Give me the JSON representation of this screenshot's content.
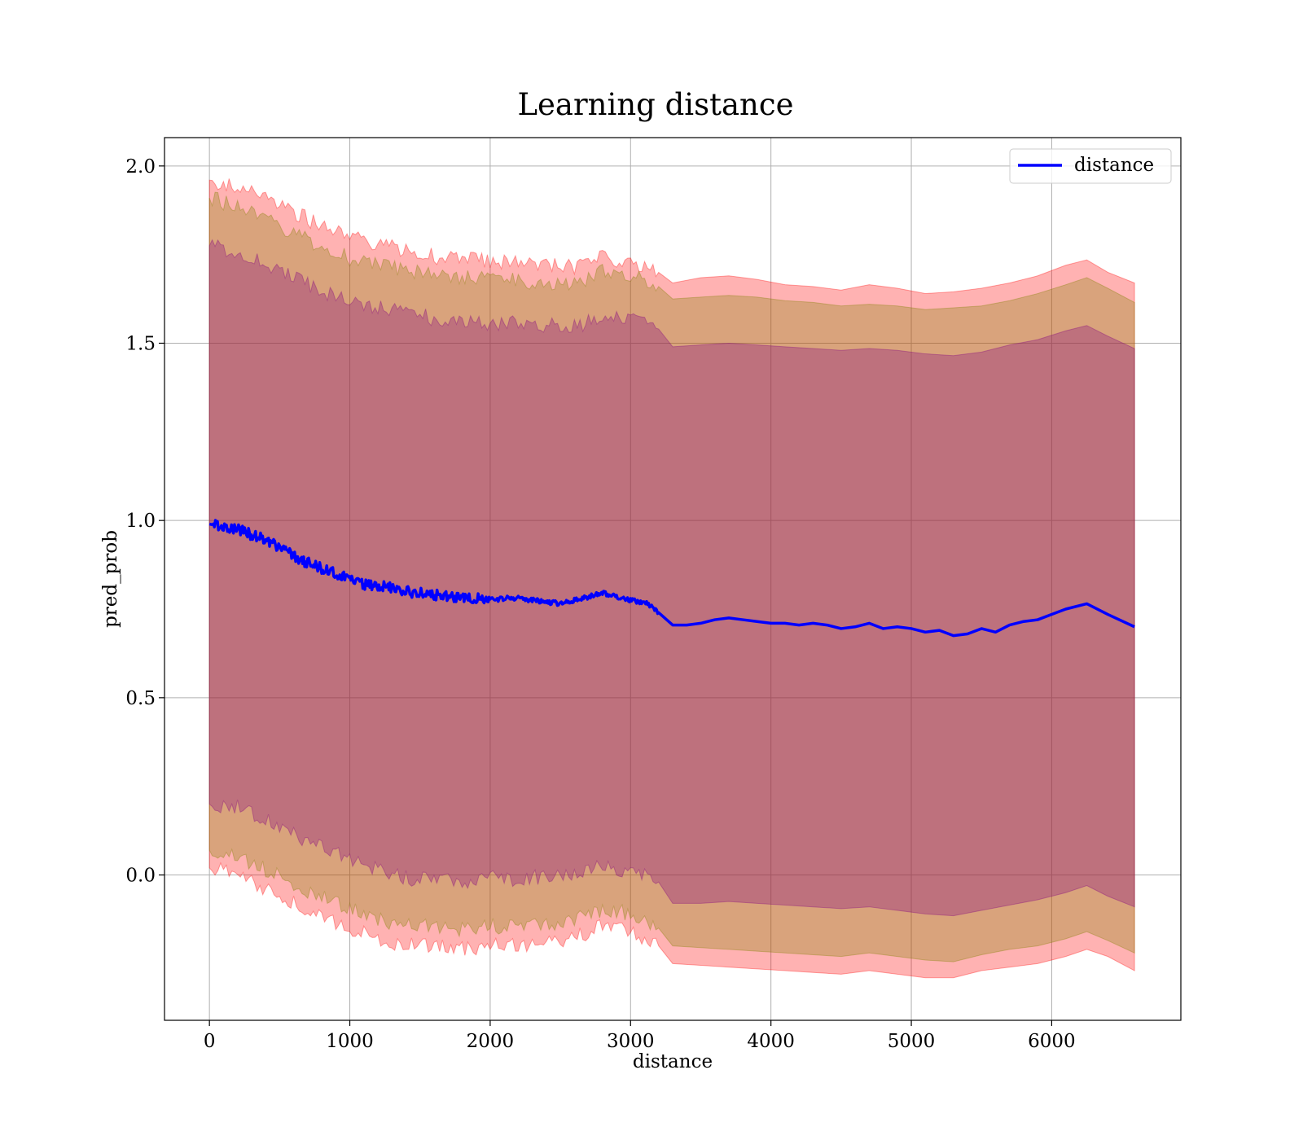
{
  "chart_data": {
    "type": "line",
    "title": "Learning distance",
    "xlabel": "distance",
    "ylabel": "pred_prob",
    "xlim": [
      -320,
      6920
    ],
    "ylim": [
      -0.41,
      2.08
    ],
    "xticks": [
      0,
      1000,
      2000,
      3000,
      4000,
      5000,
      6000
    ],
    "xtick_labels": [
      "0",
      "1000",
      "2000",
      "3000",
      "4000",
      "5000",
      "6000"
    ],
    "yticks": [
      0.0,
      0.5,
      1.0,
      1.5,
      2.0
    ],
    "ytick_labels": [
      "0.0",
      "0.5",
      "1.0",
      "1.5",
      "2.0"
    ],
    "grid": true,
    "legend": {
      "placement": "top-right",
      "entries": [
        {
          "label": "distance",
          "color": "#0000ff"
        }
      ]
    },
    "series": [
      {
        "name": "distance",
        "color": "#0000ff",
        "x": [
          0,
          100,
          200,
          300,
          400,
          500,
          600,
          700,
          800,
          900,
          1000,
          1100,
          1200,
          1300,
          1400,
          1500,
          1600,
          1700,
          1800,
          1900,
          2000,
          2100,
          2200,
          2300,
          2400,
          2500,
          2600,
          2700,
          2800,
          2900,
          3000,
          3100,
          3200,
          3300,
          3400,
          3500,
          3600,
          3700,
          3800,
          3900,
          4000,
          4100,
          4200,
          4300,
          4400,
          4500,
          4600,
          4700,
          4800,
          4900,
          5000,
          5100,
          5200,
          5300,
          5400,
          5500,
          5600,
          5700,
          5800,
          5900,
          6000,
          6100,
          6250,
          6400,
          6590
        ],
        "y": [
          0.99,
          0.98,
          0.975,
          0.96,
          0.945,
          0.925,
          0.9,
          0.88,
          0.865,
          0.85,
          0.835,
          0.82,
          0.815,
          0.81,
          0.8,
          0.795,
          0.79,
          0.785,
          0.78,
          0.78,
          0.775,
          0.78,
          0.78,
          0.775,
          0.77,
          0.765,
          0.775,
          0.785,
          0.795,
          0.785,
          0.775,
          0.77,
          0.74,
          0.705,
          0.705,
          0.71,
          0.72,
          0.725,
          0.72,
          0.715,
          0.71,
          0.71,
          0.705,
          0.71,
          0.705,
          0.695,
          0.7,
          0.71,
          0.695,
          0.7,
          0.695,
          0.685,
          0.69,
          0.675,
          0.68,
          0.695,
          0.685,
          0.705,
          0.715,
          0.72,
          0.735,
          0.75,
          0.765,
          0.735,
          0.7
        ]
      }
    ],
    "bands": [
      {
        "color": "#ff0000",
        "opacity": 0.3,
        "x": [
          0,
          200,
          400,
          600,
          800,
          1000,
          1200,
          1400,
          1600,
          1800,
          2000,
          2200,
          2400,
          2600,
          2800,
          3000,
          3200,
          3300,
          3500,
          3700,
          3900,
          4100,
          4300,
          4500,
          4700,
          4900,
          5100,
          5300,
          5500,
          5700,
          5900,
          6100,
          6250,
          6400,
          6590
        ],
        "upper": [
          1.96,
          1.94,
          1.905,
          1.87,
          1.83,
          1.8,
          1.78,
          1.76,
          1.745,
          1.74,
          1.73,
          1.725,
          1.72,
          1.715,
          1.74,
          1.73,
          1.7,
          1.67,
          1.685,
          1.69,
          1.68,
          1.665,
          1.66,
          1.65,
          1.665,
          1.655,
          1.64,
          1.645,
          1.655,
          1.67,
          1.69,
          1.72,
          1.735,
          1.7,
          1.67
        ],
        "lower": [
          0.02,
          0.0,
          -0.04,
          -0.08,
          -0.12,
          -0.15,
          -0.18,
          -0.2,
          -0.2,
          -0.21,
          -0.2,
          -0.2,
          -0.195,
          -0.18,
          -0.14,
          -0.16,
          -0.2,
          -0.25,
          -0.255,
          -0.26,
          -0.265,
          -0.27,
          -0.275,
          -0.28,
          -0.27,
          -0.28,
          -0.29,
          -0.29,
          -0.27,
          -0.26,
          -0.25,
          -0.23,
          -0.21,
          -0.23,
          -0.27
        ]
      },
      {
        "color": "#808000",
        "opacity": 0.3,
        "x": [
          0,
          200,
          400,
          600,
          800,
          1000,
          1200,
          1400,
          1600,
          1800,
          2000,
          2200,
          2400,
          2600,
          2800,
          3000,
          3200,
          3300,
          3500,
          3700,
          3900,
          4100,
          4300,
          4500,
          4700,
          4900,
          5100,
          5300,
          5500,
          5700,
          5900,
          6100,
          6250,
          6400,
          6590
        ],
        "upper": [
          1.91,
          1.885,
          1.85,
          1.81,
          1.77,
          1.74,
          1.72,
          1.705,
          1.69,
          1.685,
          1.68,
          1.675,
          1.67,
          1.665,
          1.7,
          1.69,
          1.66,
          1.625,
          1.63,
          1.635,
          1.63,
          1.62,
          1.615,
          1.605,
          1.61,
          1.605,
          1.595,
          1.6,
          1.605,
          1.62,
          1.64,
          1.665,
          1.685,
          1.655,
          1.615
        ],
        "lower": [
          0.07,
          0.05,
          0.015,
          -0.025,
          -0.065,
          -0.095,
          -0.125,
          -0.145,
          -0.145,
          -0.155,
          -0.145,
          -0.145,
          -0.14,
          -0.13,
          -0.095,
          -0.11,
          -0.15,
          -0.2,
          -0.205,
          -0.21,
          -0.215,
          -0.22,
          -0.225,
          -0.23,
          -0.22,
          -0.23,
          -0.24,
          -0.245,
          -0.225,
          -0.21,
          -0.2,
          -0.18,
          -0.16,
          -0.185,
          -0.22
        ]
      },
      {
        "color": "#800080",
        "opacity": 0.3,
        "x": [
          0,
          200,
          400,
          600,
          800,
          1000,
          1200,
          1400,
          1600,
          1800,
          2000,
          2200,
          2400,
          2600,
          2800,
          3000,
          3200,
          3300,
          3500,
          3700,
          3900,
          4100,
          4300,
          4500,
          4700,
          4900,
          5100,
          5300,
          5500,
          5700,
          5900,
          6100,
          6250,
          6400,
          6590
        ],
        "upper": [
          1.775,
          1.755,
          1.72,
          1.685,
          1.645,
          1.615,
          1.6,
          1.585,
          1.57,
          1.565,
          1.555,
          1.555,
          1.55,
          1.545,
          1.575,
          1.565,
          1.54,
          1.49,
          1.495,
          1.5,
          1.495,
          1.49,
          1.485,
          1.48,
          1.485,
          1.48,
          1.47,
          1.465,
          1.475,
          1.495,
          1.51,
          1.535,
          1.55,
          1.52,
          1.485
        ],
        "lower": [
          0.2,
          0.19,
          0.155,
          0.115,
          0.075,
          0.045,
          0.015,
          -0.01,
          -0.01,
          -0.02,
          -0.01,
          -0.01,
          -0.005,
          0.005,
          0.025,
          0.01,
          -0.02,
          -0.08,
          -0.08,
          -0.075,
          -0.08,
          -0.085,
          -0.09,
          -0.095,
          -0.09,
          -0.1,
          -0.11,
          -0.115,
          -0.1,
          -0.085,
          -0.07,
          -0.05,
          -0.03,
          -0.06,
          -0.09
        ]
      }
    ]
  }
}
